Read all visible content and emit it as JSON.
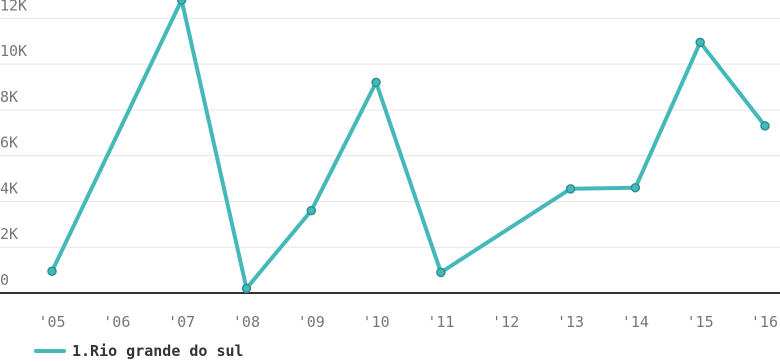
{
  "chart_data": {
    "type": "line",
    "x": [
      "'05",
      "'06",
      "'07",
      "'08",
      "'09",
      "'10",
      "'11",
      "'12",
      "'13",
      "'14",
      "'15",
      "'16"
    ],
    "x_positions": [
      2005,
      2007,
      2008,
      2009,
      2010,
      2011,
      2013,
      2014,
      2015,
      2016
    ],
    "series": [
      {
        "name": "1.Rio grande do sul",
        "color": "#45b9b9",
        "points": [
          {
            "x": 2005,
            "y": 950
          },
          {
            "x": 2007,
            "y": 12800
          },
          {
            "x": 2008,
            "y": 200
          },
          {
            "x": 2009,
            "y": 3600
          },
          {
            "x": 2010,
            "y": 9200
          },
          {
            "x": 2011,
            "y": 900
          },
          {
            "x": 2013,
            "y": 4550
          },
          {
            "x": 2014,
            "y": 4600
          },
          {
            "x": 2015,
            "y": 10950
          },
          {
            "x": 2016,
            "y": 7300
          }
        ]
      }
    ],
    "y_ticks": [
      "0",
      "2K",
      "4K",
      "6K",
      "8K",
      "10K",
      "12K"
    ],
    "y_tick_values": [
      0,
      2000,
      4000,
      6000,
      8000,
      10000,
      12000
    ],
    "xlim": [
      2005,
      2016
    ],
    "ylim": [
      0,
      12800
    ],
    "grid": true,
    "legend_position": "bottom-left",
    "title": "",
    "xlabel": "",
    "ylabel": ""
  }
}
